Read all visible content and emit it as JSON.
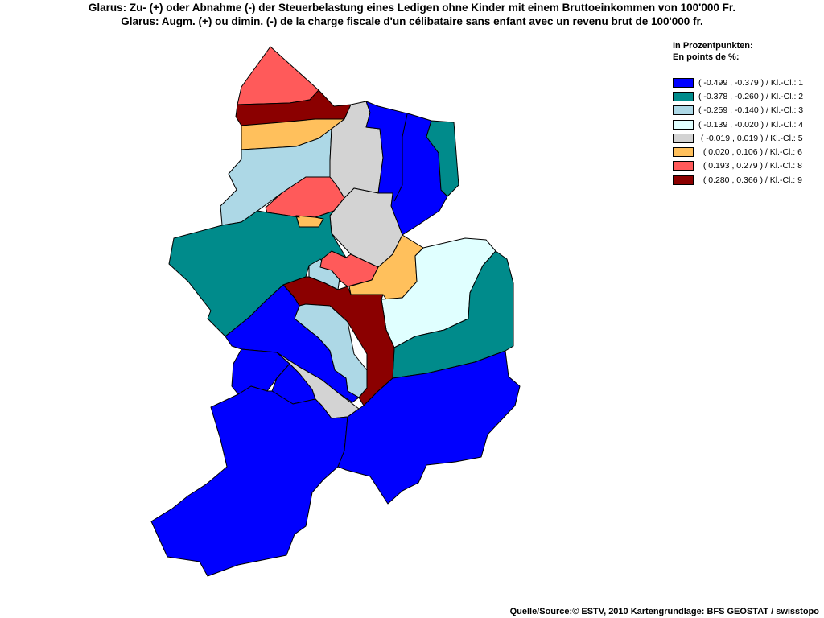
{
  "title": {
    "line1": "Glarus: Zu- (+) oder Abnahme (-) der Steuerbelastung eines Ledigen ohne Kinder mit einem Bruttoeinkommen von 100'000 Fr.",
    "line2": "Glarus: Augm. (+) ou dimin. (-) de la charge fiscale d'un célibataire sans enfant avec un revenu brut de 100'000 fr."
  },
  "legend": {
    "heading1": "In Prozentpunkten:",
    "heading2": "En points de %:",
    "items": [
      {
        "label": "( -0.499 , -0.379 ) / Kl.-Cl.: 1",
        "color": "#0000FF"
      },
      {
        "label": "( -0.378 , -0.260 ) / Kl.-Cl.: 2",
        "color": "#008B8B"
      },
      {
        "label": "( -0.259 , -0.140 ) / Kl.-Cl.: 3",
        "color": "#ADD8E6"
      },
      {
        "label": "( -0.139 , -0.020 ) / Kl.-Cl.: 4",
        "color": "#E0FFFF"
      },
      {
        "label": " ( -0.019 , 0.019 ) / Kl.-Cl.: 5",
        "color": "#D3D3D3"
      },
      {
        "label": "  ( 0.020 , 0.106 ) / Kl.-Cl.: 6",
        "color": "#FFC05C"
      },
      {
        "label": "  ( 0.193 , 0.279 ) / Kl.-Cl.: 8",
        "color": "#FF5A5A"
      },
      {
        "label": "  ( 0.280 , 0.366 ) / Kl.-Cl.: 9",
        "color": "#8B0000"
      }
    ]
  },
  "source": "Quelle/Source:© ESTV, 2010 Kartengrundlage: BFS GEOSTAT / swisstopo"
}
